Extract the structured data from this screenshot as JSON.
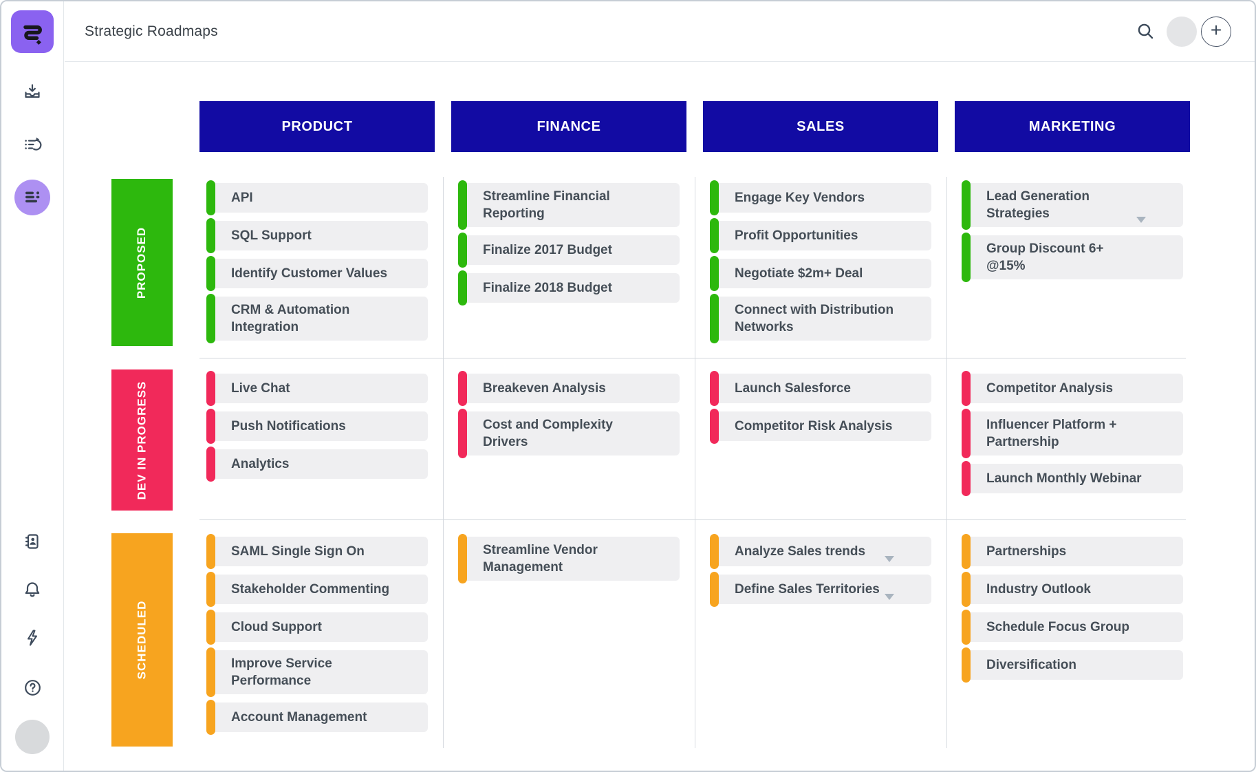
{
  "app_title": "Strategic Roadmaps",
  "topbar": {
    "add_label": "+",
    "icons": [
      "search-icon",
      "user-avatar",
      "add-new-button"
    ]
  },
  "sidebar": {
    "icons": [
      "app-logo",
      "import-tray-icon",
      "backlog-list-icon",
      "roadmaps-view-icon-active",
      "contacts-book-icon",
      "notifications-bell-icon",
      "activity-bolt-icon",
      "help-icon",
      "user-avatar"
    ]
  },
  "colors": {
    "logo_purple": "#8a62f0",
    "active_icon_bg": "#ad90f2",
    "header_blue": "#120ba3",
    "proposed_green": "#2db80d",
    "dev_pink": "#f1295a",
    "scheduled_orange": "#f7a41f"
  },
  "board": {
    "columns": [
      "PRODUCT",
      "FINANCE",
      "SALES",
      "MARKETING"
    ],
    "rows": [
      {
        "label": "PROPOSED",
        "color": "#2db80d",
        "cells": [
          [
            {
              "label": "API"
            },
            {
              "label": "SQL Support"
            },
            {
              "label": "Identify Customer Values"
            },
            {
              "label": "CRM & Automation\nIntegration"
            }
          ],
          [
            {
              "label": "Streamline Financial\nReporting"
            },
            {
              "label": "Finalize 2017 Budget"
            },
            {
              "label": "Finalize 2018 Budget"
            }
          ],
          [
            {
              "label": "Engage Key Vendors"
            },
            {
              "label": "Profit Opportunities"
            },
            {
              "label": "Negotiate $2m+ Deal"
            },
            {
              "label": "Connect with Distribution\nNetworks"
            }
          ],
          [
            {
              "label": "Lead Generation\nStrategies",
              "dropdown": true
            },
            {
              "label": "Group Discount 6+\n@15%"
            }
          ]
        ]
      },
      {
        "label": "DEV IN PROGRESS",
        "color": "#f1295a",
        "cells": [
          [
            {
              "label": "Live Chat"
            },
            {
              "label": "Push Notifications"
            },
            {
              "label": "Analytics"
            }
          ],
          [
            {
              "label": "Breakeven Analysis"
            },
            {
              "label": "Cost and Complexity\nDrivers"
            }
          ],
          [
            {
              "label": "Launch Salesforce"
            },
            {
              "label": "Competitor Risk Analysis"
            }
          ],
          [
            {
              "label": "Competitor Analysis"
            },
            {
              "label": "Influencer Platform +\nPartnership"
            },
            {
              "label": "Launch Monthly Webinar"
            }
          ]
        ]
      },
      {
        "label": "SCHEDULED",
        "color": "#f7a41f",
        "cells": [
          [
            {
              "label": "SAML Single Sign On"
            },
            {
              "label": "Stakeholder Commenting"
            },
            {
              "label": "Cloud Support"
            },
            {
              "label": "Improve Service\nPerformance"
            },
            {
              "label": "Account Management"
            }
          ],
          [
            {
              "label": "Streamline Vendor\nManagement"
            }
          ],
          [
            {
              "label": "Analyze Sales trends",
              "dropdown": true
            },
            {
              "label": "Define Sales Territories",
              "dropdown": true
            }
          ],
          [
            {
              "label": "Partnerships"
            },
            {
              "label": "Industry Outlook"
            },
            {
              "label": "Schedule Focus Group"
            },
            {
              "label": "Diversification"
            }
          ]
        ]
      }
    ]
  }
}
